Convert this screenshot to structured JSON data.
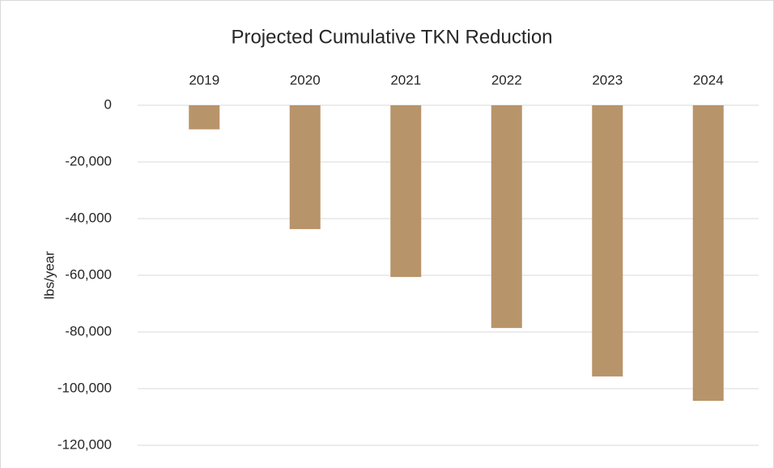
{
  "chart_data": {
    "type": "bar",
    "title": "Projected Cumulative TKN Reduction",
    "y_label": "lbs/year",
    "categories": [
      "2019",
      "2020",
      "2021",
      "2022",
      "2023",
      "2024"
    ],
    "values": [
      -8500,
      -43700,
      -60600,
      -78600,
      -95700,
      -104300
    ],
    "color": "#b8946a",
    "ylim": [
      -120000,
      0
    ],
    "yticks": [
      {
        "value": -120000,
        "label": "-120,000"
      },
      {
        "value": -100000,
        "label": "-100,000"
      },
      {
        "value": -80000,
        "label": "-80,000"
      },
      {
        "value": -60000,
        "label": "-60,000"
      },
      {
        "value": -40000,
        "label": "-40,000"
      },
      {
        "value": -20000,
        "label": "-20,000"
      },
      0
    ],
    "grid": true
  }
}
